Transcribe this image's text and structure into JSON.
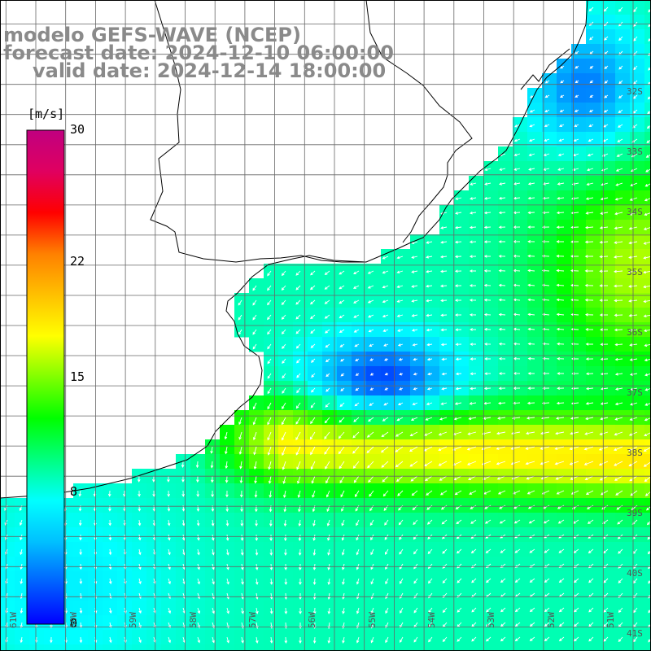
{
  "title": {
    "model": "modelo GEFS-WAVE (NCEP)",
    "forecast": "forecast date: 2024-12-10 06:00:00",
    "valid": "valid date: 2024-12-14 18:00:00"
  },
  "colorbar": {
    "unit": "[m/s]",
    "min": 0,
    "max": 30,
    "ticks": [
      {
        "value": 30,
        "label": "30"
      },
      {
        "value": 22,
        "label": "22"
      },
      {
        "value": 15,
        "label": "15"
      },
      {
        "value": 8,
        "label": "8"
      },
      {
        "value": 0,
        "label": "0"
      }
    ],
    "colors": [
      "#0000ff",
      "#0060ff",
      "#00c0ff",
      "#00ffff",
      "#00ff80",
      "#00ff00",
      "#80ff00",
      "#ffff00",
      "#ffc000",
      "#ff8000",
      "#ff0000",
      "#e00060",
      "#c00080"
    ]
  },
  "latitude_labels": [
    "32S",
    "33S",
    "34S",
    "35S",
    "36S",
    "37S",
    "38S",
    "39S",
    "40S",
    "41S"
  ],
  "longitude_labels": [
    "61W",
    "60W",
    "59W",
    "58W",
    "57W",
    "56W",
    "55W",
    "54W",
    "53W",
    "52W",
    "51W"
  ],
  "map_extent": {
    "lon_min": -61.1,
    "lon_max": -50.2,
    "lat_min": -41.4,
    "lat_max": -30.6
  }
}
